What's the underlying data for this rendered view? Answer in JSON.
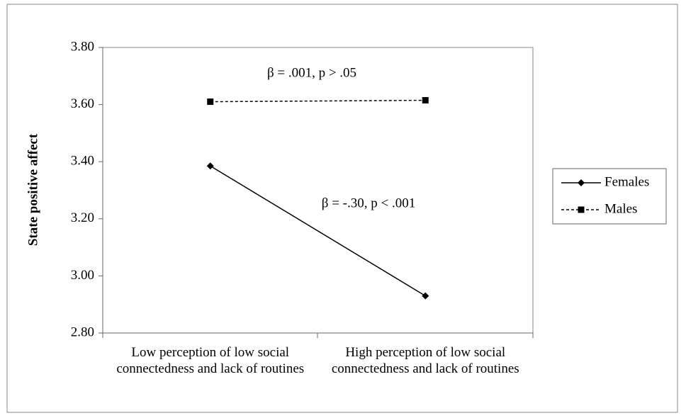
{
  "chart_data": {
    "type": "line",
    "categories": [
      "Low perception of low social connectedness and lack of routines",
      "High perception of low social connectedness and lack of routines"
    ],
    "series": [
      {
        "name": "Females",
        "color": "#000000",
        "dash": "solid",
        "marker": "diamond",
        "values": [
          3.385,
          2.93
        ]
      },
      {
        "name": "Males",
        "color": "#000000",
        "dash": "dashed",
        "marker": "square",
        "values": [
          3.61,
          3.615
        ]
      }
    ],
    "ylabel": "State positive affect",
    "ylim": [
      2.8,
      3.8
    ],
    "yticks": [
      {
        "value": 2.8,
        "label": "2.80"
      },
      {
        "value": 3.0,
        "label": "3.00"
      },
      {
        "value": 3.2,
        "label": "3.20"
      },
      {
        "value": 3.4,
        "label": "3.40"
      },
      {
        "value": 3.6,
        "label": "3.60"
      },
      {
        "value": 3.8,
        "label": "3.80"
      }
    ],
    "annotations": [
      "β = .001, p > .05",
      "β = -.30, p < .001"
    ],
    "legend": "right"
  }
}
